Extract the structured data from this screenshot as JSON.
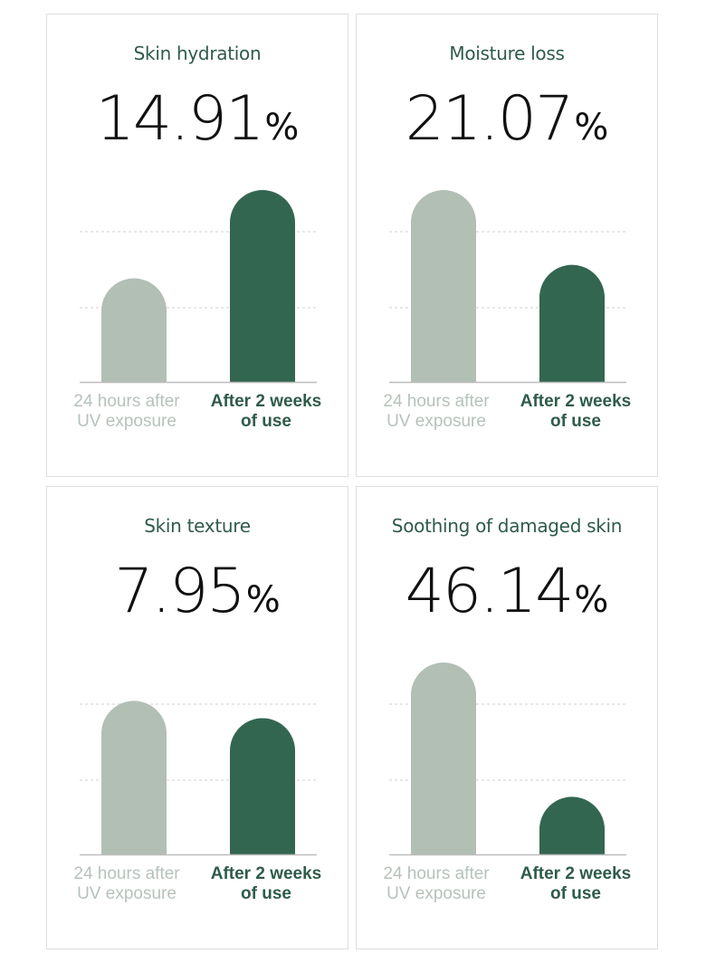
{
  "colors": {
    "before": "#b1bfb5",
    "after": "#336651",
    "title": "#2f5b4a",
    "grid": "#cfcfcf",
    "baseline": "#bdbdbd"
  },
  "chart_data": [
    {
      "type": "bar",
      "title": "Skin hydration",
      "highlight_value": "14.91",
      "unit": "%",
      "categories": [
        [
          "24 hours  after",
          "UV exposure"
        ],
        [
          "After 2 weeks",
          "of use"
        ]
      ],
      "values": [
        0.54,
        1.0
      ],
      "ylim": [
        0,
        1.0
      ],
      "grid": true
    },
    {
      "type": "bar",
      "title": "Moisture loss",
      "highlight_value": "21.07",
      "unit": "%",
      "categories": [
        [
          "24 hours  after",
          "UV exposure"
        ],
        [
          "After 2 weeks",
          "of use"
        ]
      ],
      "values": [
        1.0,
        0.61
      ],
      "ylim": [
        0,
        1.0
      ],
      "grid": true
    },
    {
      "type": "bar",
      "title": "Skin texture",
      "highlight_value": "7.95",
      "unit": "%",
      "categories": [
        [
          "24 hours  after",
          "UV exposure"
        ],
        [
          "After 2 weeks",
          "of use"
        ]
      ],
      "values": [
        0.8,
        0.71
      ],
      "ylim": [
        0,
        1.0
      ],
      "grid": true
    },
    {
      "type": "bar",
      "title": "Soothing of damaged skin",
      "highlight_value": "46.14",
      "unit": "%",
      "categories": [
        [
          "24 hours  after",
          "UV exposure"
        ],
        [
          "After 2 weeks",
          "of use"
        ]
      ],
      "values": [
        1.0,
        0.3
      ],
      "ylim": [
        0,
        1.0
      ],
      "grid": true
    }
  ]
}
